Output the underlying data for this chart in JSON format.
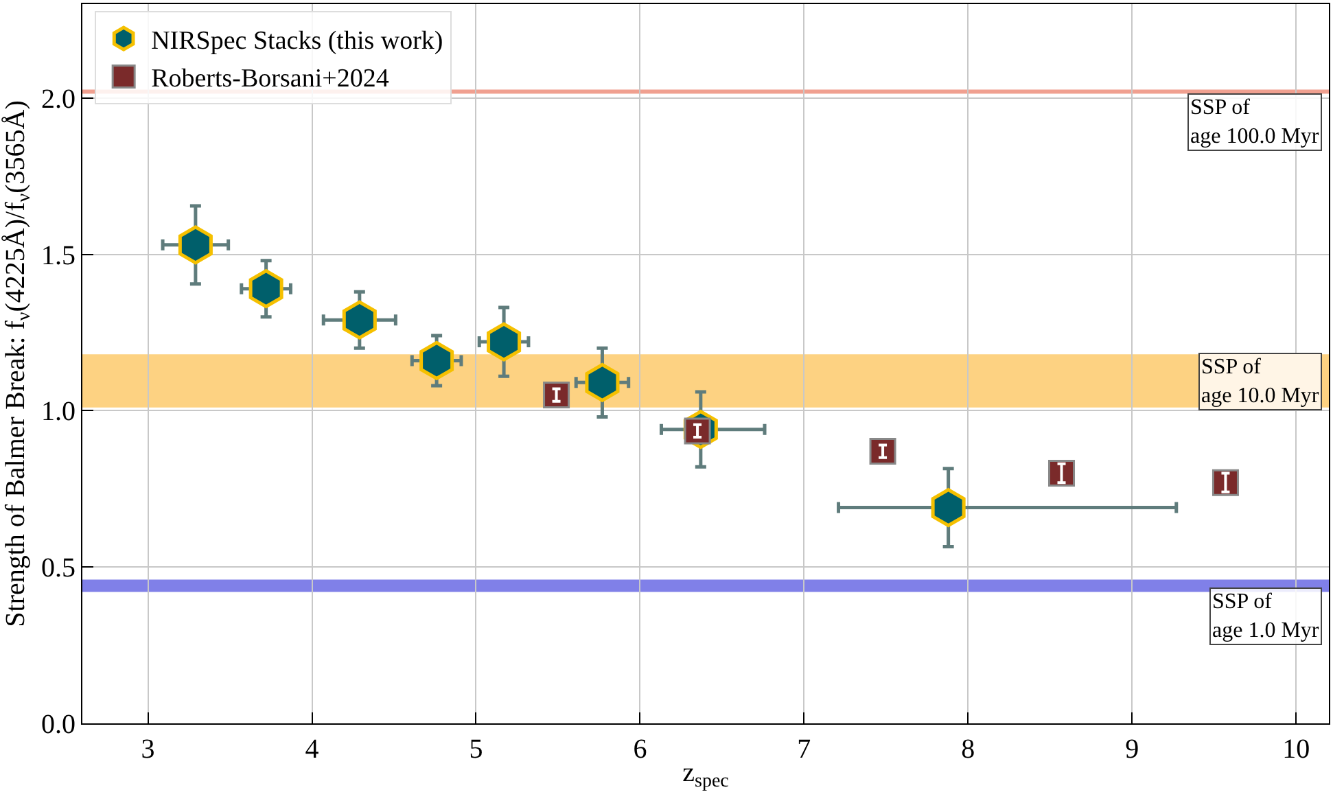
{
  "chart_data": {
    "type": "scatter",
    "xlabel": "z$_{spec}$",
    "ylabel": "Strength of Balmer Break: f$_{ν}$(4225Å)/f$_{ν}$(3565Å)",
    "xlim": [
      2.6,
      10.2
    ],
    "xticks": [
      3,
      4,
      5,
      6,
      7,
      8,
      9,
      10
    ],
    "ylim": [
      0,
      2.3
    ],
    "yticks": [
      {
        "value": 0,
        "label": "0.0"
      },
      {
        "value": 0.5,
        "label": "0.5"
      },
      {
        "value": 1,
        "label": "1.0"
      },
      {
        "value": 1.5,
        "label": "1.5"
      },
      {
        "value": 2,
        "label": "2.0"
      }
    ],
    "grid": true,
    "legend": "top left",
    "series": [
      {
        "name": "NIRSpec Stacks (this work)",
        "color": "#005f6b",
        "x": [
          3.29,
          3.72,
          4.29,
          4.76,
          5.17,
          5.77,
          6.37,
          7.88
        ],
        "values": [
          1.53,
          1.39,
          1.29,
          1.16,
          1.22,
          1.09,
          0.94,
          0.69
        ],
        "errors": [
          0.125,
          0.09,
          0.09,
          0.08,
          0.11,
          0.11,
          0.12,
          0.125
        ],
        "xerrors": [
          0.2,
          0.15,
          0.22,
          0.15,
          0.15,
          0.16,
          [
            6.13,
            6.76
          ],
          [
            7.21,
            9.27
          ]
        ]
      },
      {
        "name": "Roberts-Borsani+2024",
        "color": "#7a2a2a",
        "marker": "square",
        "x": [
          5.49,
          6.35,
          7.48,
          8.57,
          9.57
        ],
        "values": [
          1.05,
          0.935,
          0.87,
          0.8,
          0.77
        ],
        "errors": [
          0.02,
          0.02,
          0.02,
          0.03,
          0.03
        ]
      }
    ],
    "ref_lines": [
      {
        "axis": "y",
        "value": 2.02,
        "label": "SSP of\nage 100.0 Myr",
        "color": "#f0a090"
      },
      {
        "axis": "y",
        "value": 0.44,
        "label": "SSP of\nage 1.0 Myr",
        "color": "#8080e8"
      }
    ],
    "bands": [
      {
        "axis": "y",
        "from": 1.01,
        "to": 1.18,
        "label": "SSP of\nage 10.0 Myr",
        "color": "#fdd282"
      }
    ]
  }
}
